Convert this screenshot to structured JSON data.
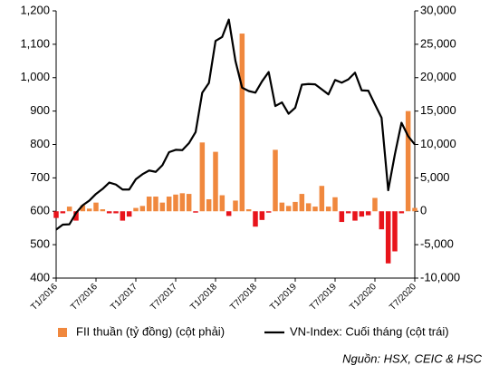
{
  "chart_data": {
    "type": "combo",
    "categories": [
      "T1/2016",
      null,
      null,
      null,
      null,
      null,
      "T7/2016",
      null,
      null,
      null,
      null,
      null,
      "T1/2017",
      null,
      null,
      null,
      null,
      null,
      "T7/2017",
      null,
      null,
      null,
      null,
      null,
      "T1/2018",
      null,
      null,
      null,
      null,
      null,
      "T7/2018",
      null,
      null,
      null,
      null,
      null,
      "T1/2019",
      null,
      null,
      null,
      null,
      null,
      "T7/2019",
      null,
      null,
      null,
      null,
      null,
      "T1/2020",
      null,
      null,
      null,
      null,
      null,
      "T7/2020"
    ],
    "series": [
      {
        "name": "FII thuần (tỷ đồng) (cột phải)",
        "type": "bar",
        "axis": "y2",
        "color": "#f0883e",
        "negative_color": "#e8141b",
        "values": [
          -1000,
          -300,
          700,
          -1400,
          900,
          400,
          1300,
          300,
          -300,
          -300,
          -1400,
          -800,
          500,
          800,
          2200,
          2200,
          1300,
          2200,
          2500,
          2700,
          2600,
          -200,
          10300,
          1800,
          8900,
          2400,
          -700,
          1600,
          26600,
          300,
          -2300,
          -1300,
          -200,
          9200,
          1300,
          800,
          1400,
          2600,
          1200,
          700,
          3800,
          700,
          2100,
          -1600,
          -300,
          -1400,
          -800,
          -600,
          2000,
          -2700,
          -7800,
          -6000,
          -300,
          15000,
          500
        ]
      },
      {
        "name": "VN-Index: Cuối tháng (cột trái)",
        "type": "line",
        "axis": "y",
        "color": "#000000",
        "values": [
          545,
          560,
          561,
          595,
          618,
          632,
          652,
          667,
          686,
          680,
          665,
          665,
          696,
          711,
          722,
          718,
          738,
          777,
          784,
          783,
          804,
          837,
          955,
          984,
          1110,
          1122,
          1174,
          1050,
          970,
          960,
          955,
          989,
          1017,
          915,
          926,
          892,
          910,
          979,
          981,
          980,
          965,
          950,
          993,
          985,
          995,
          1015,
          962,
          961,
          920,
          880,
          663,
          770,
          865,
          825,
          800
        ]
      }
    ],
    "ylim": [
      400,
      1200
    ],
    "yticks": [
      400,
      500,
      600,
      700,
      800,
      900,
      {
        "value": 1000,
        "label": "1,000"
      },
      {
        "value": 1100,
        "label": "1,100"
      },
      {
        "value": 1200,
        "label": "1,200"
      }
    ],
    "y2lim": [
      -10000,
      30000
    ],
    "y2ticks": [
      {
        "value": -10000,
        "label": "-10,000"
      },
      {
        "value": -5000,
        "label": "-5,000"
      },
      0,
      {
        "value": 5000,
        "label": "5,000"
      },
      {
        "value": 10000,
        "label": "10,000"
      },
      {
        "value": 15000,
        "label": "15,000"
      },
      {
        "value": 20000,
        "label": "20,000"
      },
      {
        "value": 25000,
        "label": "25,000"
      },
      {
        "value": 30000,
        "label": "30,000"
      }
    ],
    "grid": false,
    "source": "Nguồn: HSX, CEIC & HSC"
  }
}
